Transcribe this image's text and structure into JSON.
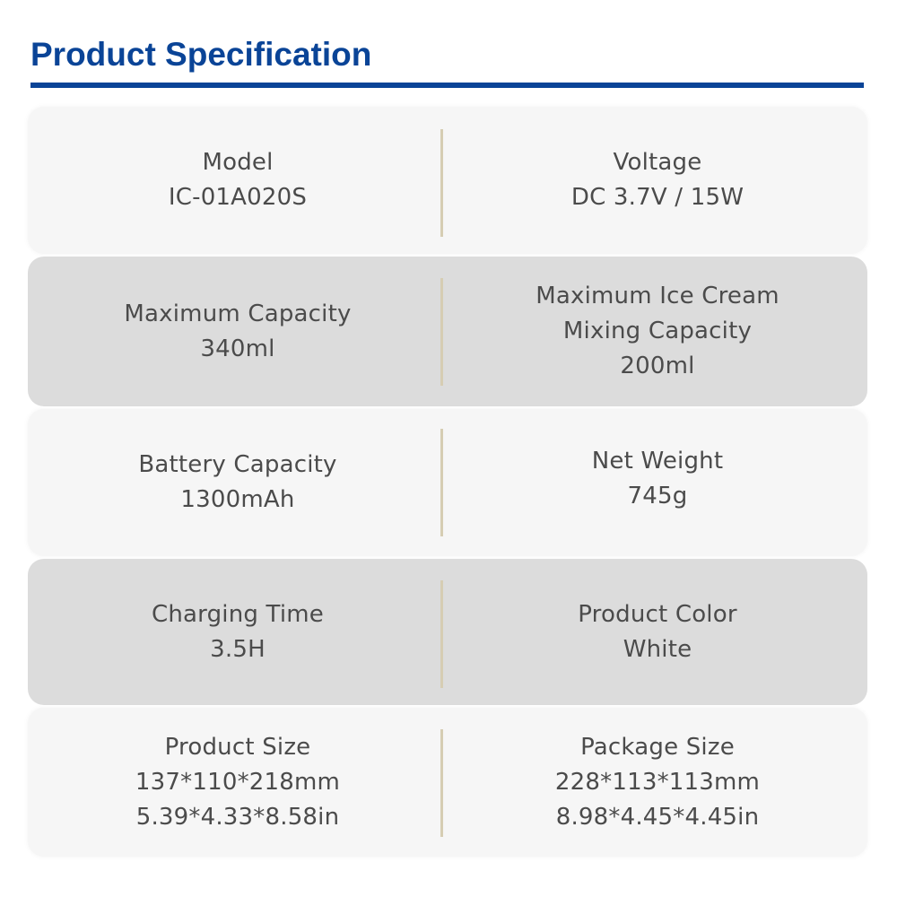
{
  "title": "Product Specification",
  "specs": [
    {
      "left": {
        "label": "Model",
        "values": [
          "IC-01A020S"
        ]
      },
      "right": {
        "label": "Voltage",
        "values": [
          "DC 3.7V / 15W"
        ]
      }
    },
    {
      "left": {
        "label": "Maximum Capacity",
        "values": [
          "340ml"
        ]
      },
      "right": {
        "label": "Maximum Ice Cream Mixing Capacity",
        "label_lines": [
          "Maximum Ice Cream",
          "Mixing Capacity"
        ],
        "values": [
          "200ml"
        ]
      }
    },
    {
      "left": {
        "label": "Battery Capacity",
        "values": [
          "1300mAh"
        ]
      },
      "right": {
        "label": "Net Weight",
        "values": [
          "745g"
        ]
      }
    },
    {
      "left": {
        "label": "Charging Time",
        "values": [
          "3.5H"
        ]
      },
      "right": {
        "label": "Product Color",
        "values": [
          "White"
        ]
      }
    },
    {
      "left": {
        "label": "Product Size",
        "values": [
          "137*110*218mm",
          "5.39*4.33*8.58in"
        ]
      },
      "right": {
        "label": "Package Size",
        "values": [
          "228*113*113mm",
          "8.98*4.45*4.45in"
        ]
      }
    }
  ],
  "colors": {
    "title": "#0a4497",
    "text": "#4b4b4b",
    "row_light": "#f6f6f6",
    "row_dark": "#dcdcdc",
    "divider": "#d6cdb3"
  }
}
